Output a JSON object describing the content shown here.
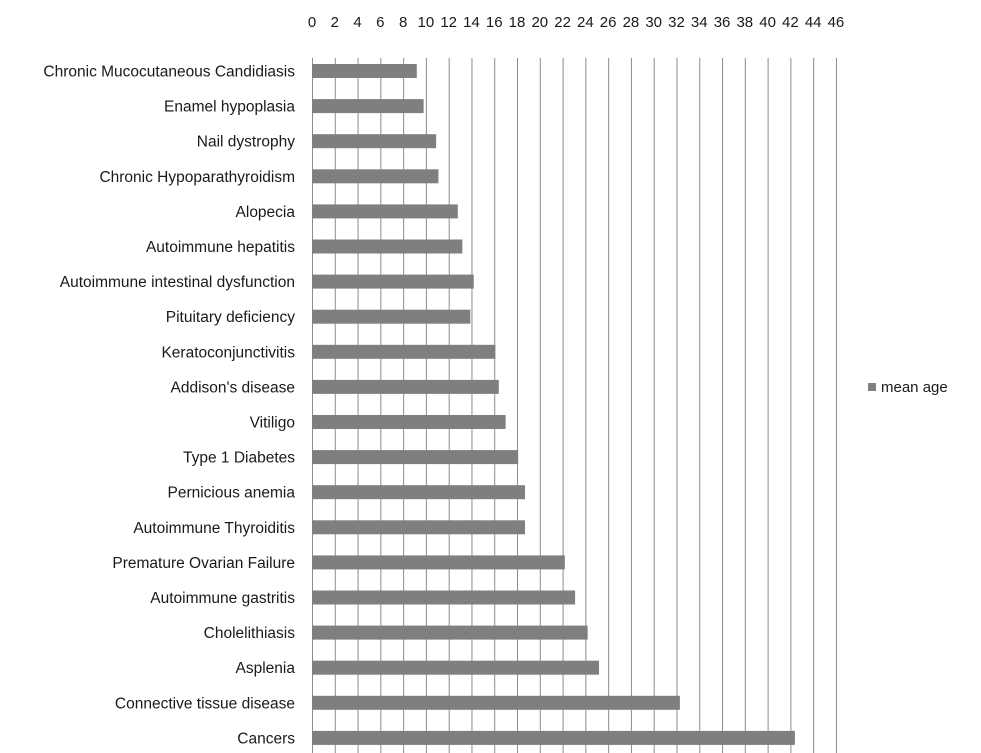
{
  "chart_data": {
    "type": "bar",
    "orientation": "horizontal",
    "categories": [
      "Chronic  Mucocutaneous Candidiasis",
      "Enamel hypoplasia",
      "Nail dystrophy",
      "Chronic Hypoparathyroidism",
      "Alopecia",
      "Autoimmune hepatitis",
      "Autoimmune intestinal dysfunction",
      "Pituitary deficiency",
      "Keratoconjunctivitis",
      "Addison's disease",
      "Vitiligo",
      "Type 1 Diabetes",
      "Pernicious anemia",
      "Autoimmune Thyroiditis",
      "Premature Ovarian Failure",
      "Autoimmune gastritis",
      "Cholelithiasis",
      "Asplenia",
      "Connective tissue disease",
      "Cancers"
    ],
    "series": [
      {
        "name": "mean age",
        "values": [
          9.2,
          9.8,
          10.9,
          11.1,
          12.8,
          13.2,
          14.2,
          13.9,
          16.1,
          16.4,
          17,
          18.1,
          18.7,
          18.7,
          22.2,
          23.1,
          24.2,
          25.2,
          32.3,
          42.4
        ]
      }
    ],
    "xlim": [
      0,
      46
    ],
    "xticks": [
      "0",
      "2",
      "4",
      "6",
      "8",
      "10",
      "12",
      "14",
      "16",
      "18",
      "20",
      "22",
      "24",
      "26",
      "28",
      "30",
      "32",
      "34",
      "36",
      "38",
      "40",
      "42",
      "44",
      "46"
    ],
    "x_axis_position": "top",
    "grid": "vertical",
    "legend": "right",
    "title": "",
    "xlabel": "",
    "ylabel": "",
    "colors": {
      "bar": "#7f7f7f",
      "grid": "#8c8c8c",
      "text": "#1a1a1a"
    }
  }
}
